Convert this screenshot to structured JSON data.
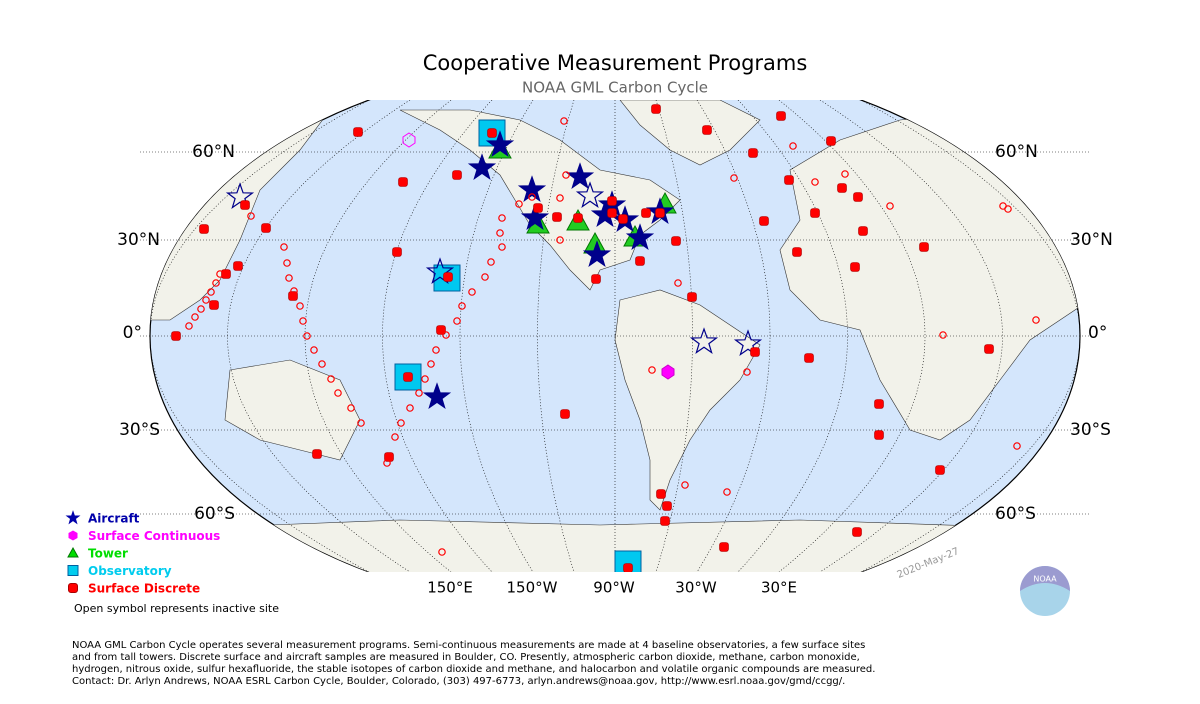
{
  "header": {
    "title": "Cooperative Measurement Programs",
    "subtitle": "NOAA GML Carbon Cycle"
  },
  "map": {
    "lat_labels": [
      "60°N",
      "30°N",
      "0°",
      "30°S",
      "60°S"
    ],
    "lon_labels": [
      "150°E",
      "150°W",
      "90°W",
      "30°W",
      "30°E"
    ],
    "date_stamp": "2020-May-27"
  },
  "legend": {
    "items": [
      "Aircraft",
      "Surface Continuous",
      "Tower",
      "Observatory",
      "Surface Discrete"
    ],
    "note": "Open symbol represents inactive site"
  },
  "logo": {
    "text": "NOAA"
  },
  "footer": {
    "lines": [
      "NOAA GML Carbon Cycle operates several measurement programs.  Semi-continuous measurements are made at 4 baseline observatories, a few surface sites",
      "and from tall towers.  Discrete surface and aircraft samples are measured in Boulder, CO.  Presently, atmospheric carbon dioxide, methane, carbon monoxide,",
      "hydrogen, nitrous oxide, sulfur hexafluoride, the stable isotopes of carbon dioxide and methane, and halocarbon and volatile organic compounds are measured.",
      "Contact:  Dr. Arlyn Andrews, NOAA ESRL Carbon Cycle, Boulder, Colorado, (303) 497-6773, arlyn.andrews@noaa.gov, http://www.esrl.noaa.gov/gmd/ccgg/."
    ]
  }
}
